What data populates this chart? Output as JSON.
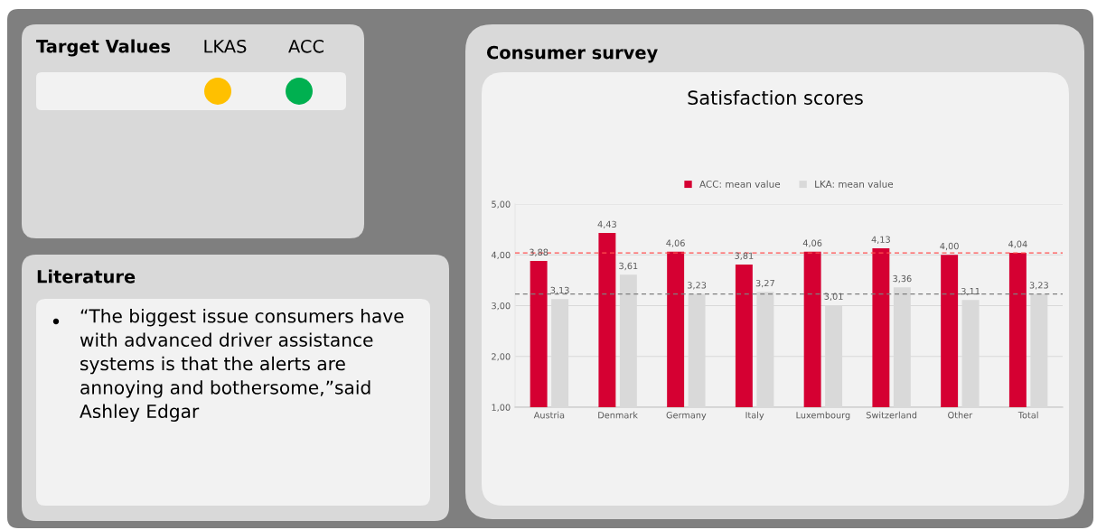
{
  "chart_data": [
    {
      "type": "other",
      "title": "Target Values",
      "categories": [
        "LKAS",
        "ACC"
      ],
      "colors": [
        "#ffc000",
        "#00b050"
      ]
    },
    {
      "type": "other",
      "title": "Literature",
      "annotations": [
        "“The biggest issue consumers have with advanced driver assistance systems is that the alerts are annoying and bothersome,”said Ashley Edgar"
      ]
    },
    {
      "type": "bar",
      "title": "Consumer survey",
      "subtitle": "Satisfaction scores",
      "categories": [
        "Austria",
        "Denmark",
        "Germany",
        "Italy",
        "Luxembourg",
        "Switzerland",
        "Other",
        "Total"
      ],
      "series": [
        {
          "name": "ACC: mean value",
          "color": "#d50032",
          "values": [
            3.88,
            4.43,
            4.06,
            3.81,
            4.06,
            4.13,
            4.0,
            4.04
          ],
          "value_labels": [
            "3,88",
            "4,43",
            "4,06",
            "3,81",
            "4,06",
            "4,13",
            "4,00",
            "4,04"
          ]
        },
        {
          "name": "LKA: mean value",
          "color": "#d9d9d9",
          "values": [
            3.13,
            3.61,
            3.23,
            3.27,
            3.01,
            3.36,
            3.11,
            3.23
          ],
          "value_labels": [
            "3,13",
            "3,61",
            "3,23",
            "3,27",
            "3,01",
            "3,36",
            "3,11",
            "3,23"
          ]
        }
      ],
      "ylim": [
        1,
        5
      ],
      "yticks": [
        {
          "value": 1,
          "label": "1,00"
        },
        {
          "value": 2,
          "label": "2,00"
        },
        {
          "value": 3,
          "label": "3,00"
        },
        {
          "value": 4,
          "label": "4,00"
        },
        {
          "value": 5,
          "label": "5,00"
        }
      ],
      "grid": "y",
      "legend": "top",
      "ref_lines": [
        {
          "axis": "y",
          "value": 4.04,
          "color": "#ff5050",
          "line_style": "dashed"
        },
        {
          "axis": "y",
          "value": 3.23,
          "color": "#7f7f7f",
          "line_style": "dashed"
        }
      ]
    }
  ]
}
